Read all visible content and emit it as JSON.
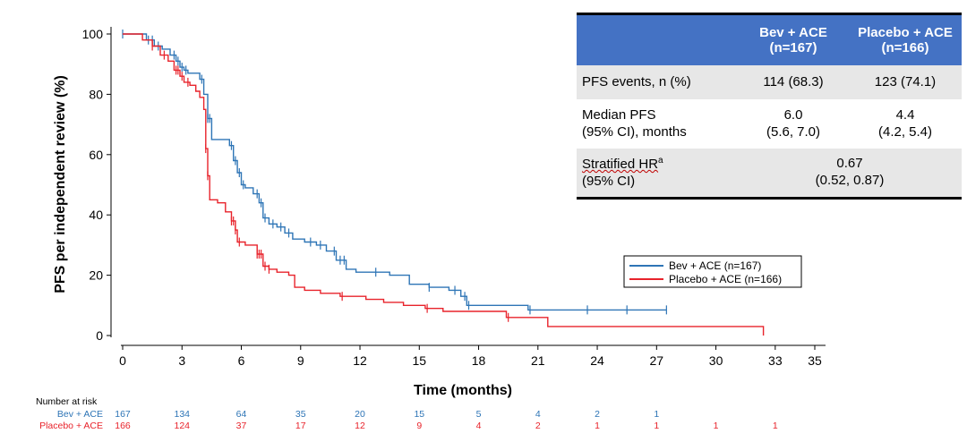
{
  "chart_data": {
    "type": "line",
    "subtype": "kaplan-meier",
    "title": "",
    "xlabel": "Time (months)",
    "ylabel": "PFS per independent review (%)",
    "xlim": [
      0,
      35
    ],
    "ylim": [
      0,
      100
    ],
    "xticks": [
      0,
      3,
      6,
      9,
      12,
      15,
      18,
      21,
      24,
      27,
      30,
      33,
      35
    ],
    "yticks": [
      0,
      20,
      40,
      60,
      80,
      100
    ],
    "legend_position": "center-right",
    "series": [
      {
        "name": "Bev + ACE (n=167)",
        "color": "#2e75b6",
        "x": [
          0,
          1.2,
          1.6,
          2.0,
          2.4,
          2.7,
          2.9,
          3.1,
          3.3,
          3.6,
          3.9,
          4.1,
          4.3,
          4.5,
          4.8,
          5.4,
          5.6,
          5.8,
          6.0,
          6.2,
          6.6,
          6.9,
          7.1,
          7.4,
          7.8,
          8.2,
          8.6,
          9.2,
          9.8,
          10.3,
          10.8,
          11.3,
          11.8,
          12.5,
          13.5,
          14.5,
          15.5,
          16.5,
          17.1,
          17.4,
          18.5,
          20.5,
          21.5,
          23.5,
          25.5,
          27.5
        ],
        "y": [
          100,
          98,
          96,
          95,
          93,
          91,
          89,
          88,
          87,
          87,
          85,
          80,
          72,
          65,
          65,
          63,
          58,
          54,
          50,
          49,
          47,
          44,
          39,
          37,
          36,
          34,
          32,
          31,
          30,
          28,
          25,
          22,
          21,
          21,
          20,
          17,
          16,
          15,
          13,
          10,
          10,
          8.5,
          8.5,
          8.5,
          8.5,
          8.5
        ],
        "censor_x": [
          0,
          1.3,
          1.5,
          1.8,
          2.6,
          2.8,
          3.0,
          3.2,
          4.0,
          4.3,
          4.4,
          5.5,
          5.7,
          5.9,
          6.1,
          6.8,
          7.0,
          7.2,
          7.6,
          8.0,
          8.4,
          9.5,
          10.0,
          10.7,
          11.0,
          11.2,
          12.8,
          15.5,
          16.8,
          17.3,
          17.5,
          20.6,
          23.5,
          25.5,
          27.5
        ],
        "risk_numbers": [
          "167",
          "134",
          "64",
          "35",
          "20",
          "15",
          "5",
          "4",
          "2",
          "1"
        ]
      },
      {
        "name": "Placebo + ACE (n=166)",
        "color": "#e8232b",
        "x": [
          0,
          1.0,
          1.5,
          1.9,
          2.3,
          2.6,
          2.9,
          3.1,
          3.4,
          3.7,
          3.9,
          4.1,
          4.2,
          4.3,
          4.4,
          4.8,
          5.2,
          5.5,
          5.7,
          5.8,
          6.2,
          6.8,
          7.1,
          7.4,
          7.8,
          8.4,
          8.7,
          9.2,
          10.0,
          11.0,
          12.3,
          13.2,
          14.2,
          15.3,
          16.2,
          19.4,
          21.5,
          32.4
        ],
        "y": [
          100,
          98,
          96,
          93,
          91,
          88,
          86,
          84,
          83,
          81,
          79,
          75,
          62,
          53,
          45,
          44,
          41,
          38,
          35,
          31,
          30,
          27,
          23,
          22,
          21,
          20,
          16,
          15,
          14,
          13,
          12,
          11,
          10,
          9,
          8,
          6,
          3,
          0
        ],
        "censor_x": [
          1.5,
          2.1,
          2.7,
          2.8,
          3.0,
          3.3,
          4.2,
          4.3,
          5.5,
          5.6,
          5.7,
          5.9,
          6.8,
          6.9,
          7.0,
          7.2,
          7.4,
          11.1,
          15.4,
          19.5
        ],
        "risk_numbers": [
          "166",
          "124",
          "37",
          "17",
          "12",
          "9",
          "4",
          "2",
          "1",
          "1",
          "1",
          "1"
        ]
      }
    ],
    "risk_table": {
      "header": "Number at risk",
      "times": [
        0,
        3,
        6,
        9,
        12,
        15,
        18,
        21,
        24,
        27,
        30,
        33
      ],
      "rows": [
        {
          "label": "Bev + ACE",
          "color": "#2e75b6"
        },
        {
          "label": "Placebo + ACE",
          "color": "#e8232b"
        }
      ]
    }
  },
  "table": {
    "col1_header_line1": "Bev + ACE",
    "col1_header_line2": "(n=167)",
    "col2_header_line1": "Placebo + ACE",
    "col2_header_line2": "(n=166)",
    "header_color": "#4472c4",
    "row1": {
      "label": "PFS events, n (%)",
      "bev": "114 (68.3)",
      "placebo": "123 (74.1)"
    },
    "row2": {
      "label_line1": "Median PFS",
      "label_line2": "(95% CI), months",
      "bev_line1": "6.0",
      "bev_line2": "(5.6, 7.0)",
      "placebo_line1": "4.4",
      "placebo_line2": "(4.2, 5.4)"
    },
    "row3": {
      "label_line1": "Stratified HR",
      "label_sup": "a",
      "label_line2": "(95% CI)",
      "value_line1": "0.67",
      "value_line2": "(0.52, 0.87)"
    }
  }
}
